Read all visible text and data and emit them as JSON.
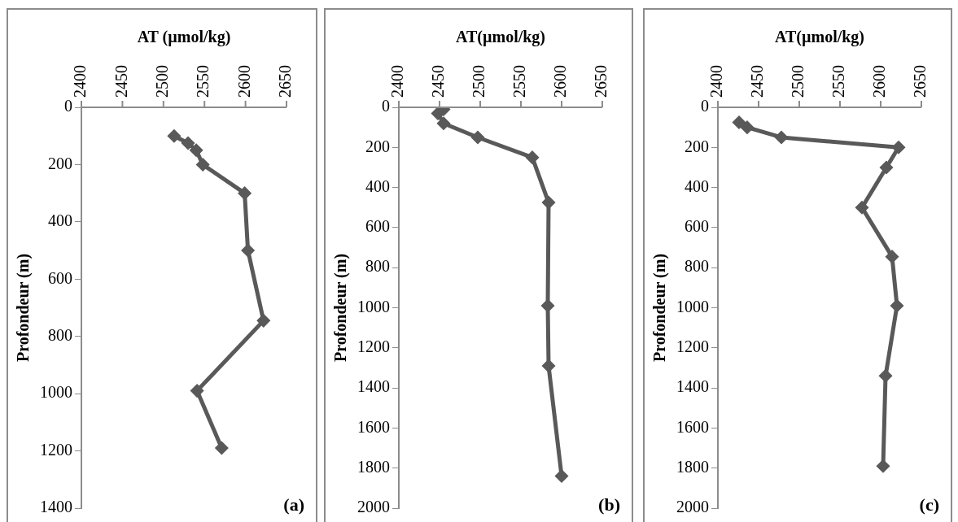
{
  "chart_data": [
    {
      "type": "line",
      "xlabel": "AT (µmol/kg)",
      "ylabel": "Profondeur (m)",
      "xlim": [
        2400,
        2650
      ],
      "xticks": [
        2400,
        2450,
        2500,
        2550,
        2600,
        2650
      ],
      "ylim": [
        1400,
        0
      ],
      "yticks": [
        0,
        200,
        400,
        600,
        800,
        1000,
        1200,
        1400
      ],
      "grid": false,
      "marker": "diamond",
      "annotations": [
        "(a)"
      ],
      "series": [
        {
          "color": "#595959",
          "x": [
            2513,
            2530,
            2540,
            2548,
            2599,
            2603,
            2622,
            2541,
            2571
          ],
          "values": [
            100,
            125,
            150,
            200,
            300,
            500,
            745,
            990,
            1190
          ]
        }
      ]
    },
    {
      "type": "line",
      "xlabel": "AT(µmol/kg)",
      "ylabel": "Profondeur (m)",
      "xlim": [
        2400,
        2650
      ],
      "xticks": [
        2400,
        2450,
        2500,
        2550,
        2600,
        2650
      ],
      "ylim": [
        2000,
        0
      ],
      "yticks": [
        0,
        200,
        400,
        600,
        800,
        1000,
        1200,
        1400,
        1600,
        1800,
        2000
      ],
      "grid": false,
      "marker": "diamond",
      "annotations": [
        "(b)"
      ],
      "series": [
        {
          "color": "#595959",
          "x": [
            2455,
            2448,
            2455,
            2497,
            2564,
            2584,
            2583,
            2584,
            2600
          ],
          "values": [
            10,
            30,
            80,
            150,
            250,
            475,
            990,
            1290,
            1840
          ]
        }
      ]
    },
    {
      "type": "line",
      "xlabel": "AT(µmol/kg)",
      "ylabel": "Profondeur (m)",
      "xlim": [
        2400,
        2650
      ],
      "xticks": [
        2400,
        2450,
        2500,
        2550,
        2600,
        2650
      ],
      "ylim": [
        2000,
        0
      ],
      "yticks": [
        0,
        200,
        400,
        600,
        800,
        1000,
        1200,
        1400,
        1600,
        1800,
        2000
      ],
      "grid": false,
      "marker": "diamond",
      "annotations": [
        "(c)"
      ],
      "series": [
        {
          "color": "#595959",
          "x": [
            2426,
            2436,
            2478,
            2622,
            2607,
            2577,
            2614,
            2620,
            2606,
            2603
          ],
          "values": [
            75,
            100,
            150,
            200,
            300,
            500,
            745,
            990,
            1340,
            1790
          ]
        }
      ]
    }
  ]
}
